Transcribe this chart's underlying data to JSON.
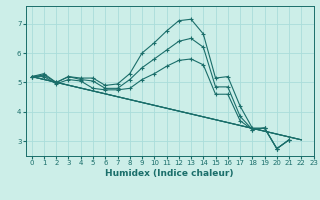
{
  "xlabel": "Humidex (Indice chaleur)",
  "bg_color": "#cceee8",
  "line_color": "#1a6e6a",
  "grid_color": "#aaddda",
  "xlim": [
    -0.5,
    23
  ],
  "ylim": [
    2.5,
    7.6
  ],
  "xticks": [
    0,
    1,
    2,
    3,
    4,
    5,
    6,
    7,
    8,
    9,
    10,
    11,
    12,
    13,
    14,
    15,
    16,
    17,
    18,
    19,
    20,
    21,
    22,
    23
  ],
  "yticks": [
    3,
    4,
    5,
    6,
    7
  ],
  "series": [
    {
      "x": [
        0,
        1,
        2,
        3,
        4,
        5,
        6,
        7,
        8,
        9,
        10,
        11,
        12,
        13,
        14,
        15,
        16,
        17,
        18,
        19,
        20,
        21,
        22
      ],
      "y": [
        5.2,
        5.3,
        5.0,
        5.2,
        5.15,
        5.15,
        4.9,
        4.95,
        5.3,
        6.0,
        6.35,
        6.75,
        7.1,
        7.15,
        6.65,
        5.15,
        5.2,
        4.2,
        3.45,
        3.45,
        2.75,
        3.05,
        null
      ],
      "has_markers": true
    },
    {
      "x": [
        0,
        1,
        2,
        3,
        4,
        5,
        6,
        7,
        8,
        9,
        10,
        11,
        12,
        13,
        14,
        15,
        16,
        17,
        18,
        19,
        20,
        21,
        22
      ],
      "y": [
        5.2,
        5.25,
        5.0,
        5.2,
        5.1,
        5.05,
        4.8,
        4.8,
        5.1,
        5.5,
        5.8,
        6.1,
        6.4,
        6.5,
        6.2,
        4.85,
        4.85,
        3.85,
        3.4,
        3.45,
        2.75,
        3.05,
        null
      ],
      "has_markers": true
    },
    {
      "x": [
        0,
        1,
        2,
        3,
        4,
        5,
        6,
        7,
        8,
        9,
        10,
        11,
        12,
        13,
        14,
        15,
        16,
        17,
        18,
        19,
        20,
        21,
        22
      ],
      "y": [
        5.2,
        5.2,
        4.95,
        5.1,
        5.05,
        4.8,
        4.75,
        4.75,
        4.8,
        5.1,
        5.3,
        5.55,
        5.75,
        5.8,
        5.6,
        4.6,
        4.6,
        3.7,
        3.4,
        3.45,
        2.75,
        3.05,
        null
      ],
      "has_markers": true
    },
    {
      "x": [
        0,
        22
      ],
      "y": [
        5.2,
        3.05
      ],
      "has_markers": false
    },
    {
      "x": [
        0,
        22
      ],
      "y": [
        5.2,
        3.05
      ],
      "has_markers": false
    },
    {
      "x": [
        0,
        22
      ],
      "y": [
        5.2,
        3.05
      ],
      "has_markers": false
    }
  ]
}
